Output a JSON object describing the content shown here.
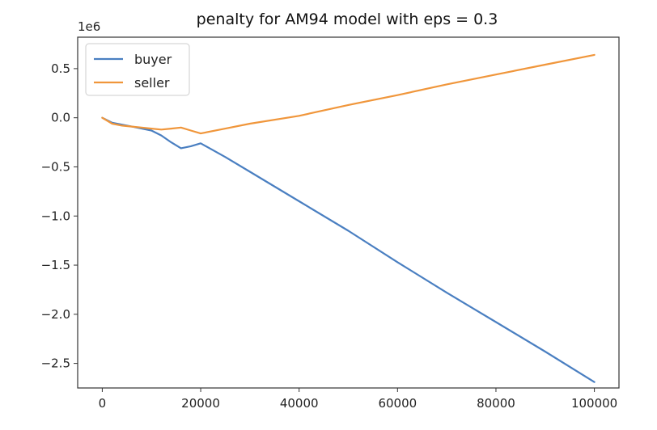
{
  "chart_data": {
    "type": "line",
    "title": "penalty for AM94 model with eps = 0.3",
    "xlabel": "",
    "ylabel": "",
    "y_offset_label": "1e6",
    "y_scale": 1000000,
    "xlim": [
      -5000,
      105000
    ],
    "ylim": [
      -2.75,
      0.82
    ],
    "grid": false,
    "legend_position": "upper-left",
    "x_ticks": [
      0,
      20000,
      40000,
      60000,
      80000,
      100000
    ],
    "x_tick_labels": [
      "0",
      "20000",
      "40000",
      "60000",
      "80000",
      "100000"
    ],
    "y_ticks": [
      0.5,
      0.0,
      -0.5,
      -1.0,
      -1.5,
      -2.0,
      -2.5
    ],
    "y_tick_labels": [
      "0.5",
      "0.0",
      "−0.5",
      "−1.0",
      "−1.5",
      "−2.0",
      "−2.5"
    ],
    "series": [
      {
        "name": "buyer",
        "color": "#4a7fc1",
        "x": [
          0,
          2000,
          4000,
          6000,
          8000,
          10000,
          12000,
          14000,
          16000,
          18000,
          20000,
          25000,
          30000,
          40000,
          50000,
          60000,
          70000,
          80000,
          90000,
          100000
        ],
        "y": [
          0.0,
          -0.05,
          -0.07,
          -0.09,
          -0.11,
          -0.13,
          -0.18,
          -0.25,
          -0.31,
          -0.29,
          -0.26,
          -0.4,
          -0.55,
          -0.85,
          -1.15,
          -1.47,
          -1.78,
          -2.08,
          -2.38,
          -2.69
        ]
      },
      {
        "name": "seller",
        "color": "#f0963b",
        "x": [
          0,
          2000,
          4000,
          6000,
          8000,
          10000,
          12000,
          14000,
          16000,
          18000,
          20000,
          25000,
          30000,
          40000,
          50000,
          60000,
          70000,
          80000,
          90000,
          100000
        ],
        "y": [
          0.0,
          -0.06,
          -0.08,
          -0.09,
          -0.1,
          -0.11,
          -0.12,
          -0.11,
          -0.1,
          -0.13,
          -0.16,
          -0.11,
          -0.06,
          0.02,
          0.13,
          0.23,
          0.34,
          0.44,
          0.54,
          0.64
        ]
      }
    ]
  }
}
